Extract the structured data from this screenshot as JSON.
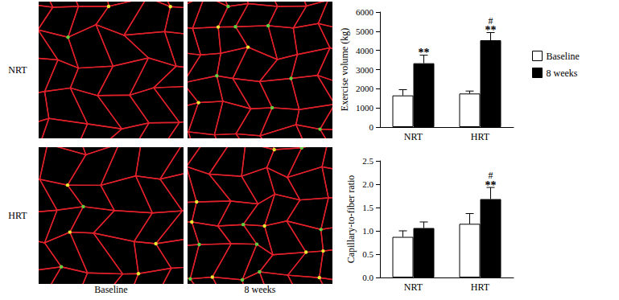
{
  "images": {
    "rows": [
      "NRT",
      "HRT"
    ],
    "columns": [
      "Baseline",
      "8 weeks"
    ]
  },
  "chart_data": [
    {
      "type": "bar",
      "y_label": "Exercise volume (kg)",
      "categories": [
        "NRT",
        "HRT"
      ],
      "series": [
        {
          "name": "Baseline",
          "color": "#ffffff",
          "values": [
            1650,
            1750
          ],
          "errors": [
            300,
            130
          ]
        },
        {
          "name": "8 weeks",
          "color": "#000000",
          "values": [
            3330,
            4530
          ],
          "errors": [
            420,
            400
          ]
        }
      ],
      "ylim": [
        0,
        6000
      ],
      "yticks": [
        0,
        1000,
        2000,
        3000,
        4000,
        5000,
        6000
      ],
      "grid": false,
      "legend": "right",
      "annotations": [
        {
          "category": "NRT",
          "series": "8 weeks",
          "text": [
            "**"
          ]
        },
        {
          "category": "HRT",
          "series": "8 weeks",
          "text": [
            "#",
            "**"
          ]
        }
      ]
    },
    {
      "type": "bar",
      "y_label": "Capillary-to-fiber ratio",
      "categories": [
        "NRT",
        "HRT"
      ],
      "series": [
        {
          "name": "Baseline",
          "color": "#ffffff",
          "values": [
            0.87,
            1.15
          ],
          "errors": [
            0.13,
            0.22
          ]
        },
        {
          "name": "8 weeks",
          "color": "#000000",
          "values": [
            1.06,
            1.68
          ],
          "errors": [
            0.13,
            0.25
          ]
        }
      ],
      "ylim": [
        0,
        2.5
      ],
      "yticks": [
        {
          "value": 0,
          "label": "0.0"
        },
        0.5,
        {
          "value": 1,
          "label": "1.0"
        },
        1.5,
        {
          "value": 2,
          "label": "2.0"
        },
        2.5
      ],
      "grid": false,
      "annotations": [
        {
          "category": "HRT",
          "series": "8 weeks",
          "text": [
            "#",
            "**"
          ]
        }
      ]
    }
  ]
}
